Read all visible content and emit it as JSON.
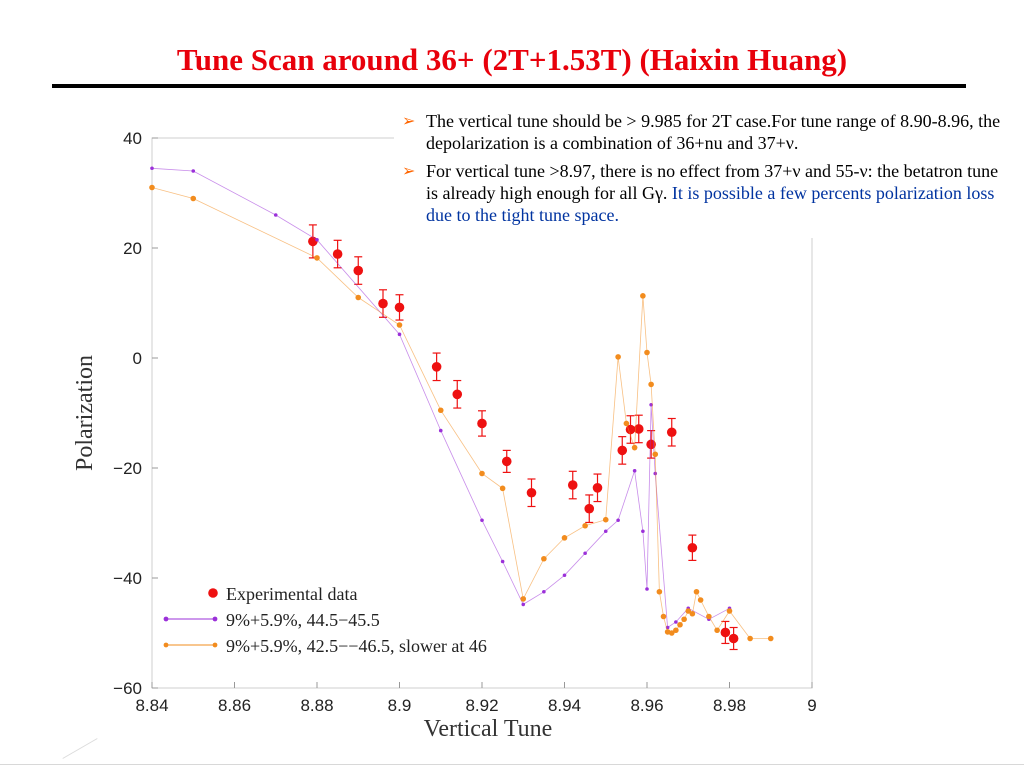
{
  "slide": {
    "title": "Tune Scan around 36+ (2T+1.53T) (Haixin Huang)"
  },
  "bullets": [
    {
      "text": "The vertical tune should be > 9.985 for 2T case.For tune range of 8.90-8.96, the depolarization is a combination of 36+nu and 37+ν.",
      "highlight": ""
    },
    {
      "text": "For vertical tune >8.97, there is no effect from 37+ν and 55-ν: the betatron tune is already high enough for all Gγ.",
      "highlight": " It is possible a few percents polarization loss due to the tight tune space."
    }
  ],
  "chart_data": {
    "type": "scatter",
    "title": "",
    "xlabel": "Vertical Tune",
    "ylabel": "Polarization",
    "xlim": [
      8.84,
      9.0
    ],
    "ylim": [
      -60,
      40
    ],
    "xticks": [
      "8.84",
      "8.86",
      "8.88",
      "8.9",
      "8.92",
      "8.94",
      "8.96",
      "8.98",
      "9"
    ],
    "yticks": [
      "40",
      "20",
      "0",
      "−20",
      "−40",
      "−60"
    ],
    "grid": false,
    "legend_position": "bottom-left",
    "series": [
      {
        "name": "Experimental data",
        "kind": "errorbar",
        "color": "#ee1111",
        "x": [
          8.879,
          8.885,
          8.89,
          8.896,
          8.9,
          8.909,
          8.914,
          8.92,
          8.926,
          8.932,
          8.942,
          8.946,
          8.948,
          8.954,
          8.956,
          8.958,
          8.961,
          8.966,
          8.971,
          8.979,
          8.981
        ],
        "y": [
          21.2,
          18.9,
          15.9,
          9.9,
          9.2,
          -1.6,
          -6.6,
          -11.9,
          -18.8,
          -24.5,
          -23.1,
          -27.4,
          -23.6,
          -16.8,
          -13.0,
          -12.9,
          -15.7,
          -13.5,
          -34.5,
          -49.9,
          -51.0
        ],
        "err": [
          3.0,
          2.5,
          2.5,
          2.5,
          2.3,
          2.5,
          2.5,
          2.3,
          2.0,
          2.5,
          2.5,
          2.5,
          2.5,
          2.5,
          2.5,
          2.5,
          2.5,
          2.5,
          2.3,
          2.0,
          2.0
        ]
      },
      {
        "name": "9%+5.9%, 44.5−45.5",
        "kind": "line",
        "color": "#9b30d9",
        "x": [
          8.84,
          8.85,
          8.87,
          8.88,
          8.9,
          8.91,
          8.92,
          8.925,
          8.93,
          8.935,
          8.94,
          8.945,
          8.95,
          8.953,
          8.957,
          8.959,
          8.96,
          8.961,
          8.962,
          8.965,
          8.967,
          8.97,
          8.975,
          8.98
        ],
        "y": [
          34.5,
          34.0,
          26.0,
          21.5,
          4.3,
          -13.2,
          -29.5,
          -37.0,
          -44.8,
          -42.5,
          -39.5,
          -35.5,
          -31.5,
          -29.5,
          -20.5,
          -31.5,
          -42.0,
          -8.5,
          -21.0,
          -49.0,
          -48.0,
          -45.5,
          -47.5,
          -45.5
        ]
      },
      {
        "name": "9%+5.9%, 42.5−−46.5, slower at 46",
        "kind": "line",
        "color": "#f28c1e",
        "x": [
          8.84,
          8.85,
          8.88,
          8.89,
          8.9,
          8.91,
          8.92,
          8.925,
          8.93,
          8.935,
          8.94,
          8.945,
          8.95,
          8.953,
          8.955,
          8.957,
          8.959,
          8.96,
          8.961,
          8.962,
          8.963,
          8.964,
          8.965,
          8.966,
          8.967,
          8.968,
          8.969,
          8.97,
          8.971,
          8.972,
          8.973,
          8.975,
          8.977,
          8.98,
          8.985,
          8.99
        ],
        "y": [
          31.0,
          29.0,
          18.2,
          11.0,
          6.0,
          -9.5,
          -21.0,
          -23.7,
          -43.8,
          -36.5,
          -32.7,
          -30.5,
          -29.4,
          0.2,
          -11.9,
          -16.3,
          11.3,
          1.0,
          -4.8,
          -17.5,
          -42.5,
          -47.0,
          -49.8,
          -50.0,
          -49.5,
          -48.5,
          -47.5,
          -46.0,
          -46.5,
          -42.5,
          -44.0,
          -47.0,
          -49.5,
          -46.0,
          -51.0,
          -51.0
        ]
      }
    ]
  }
}
